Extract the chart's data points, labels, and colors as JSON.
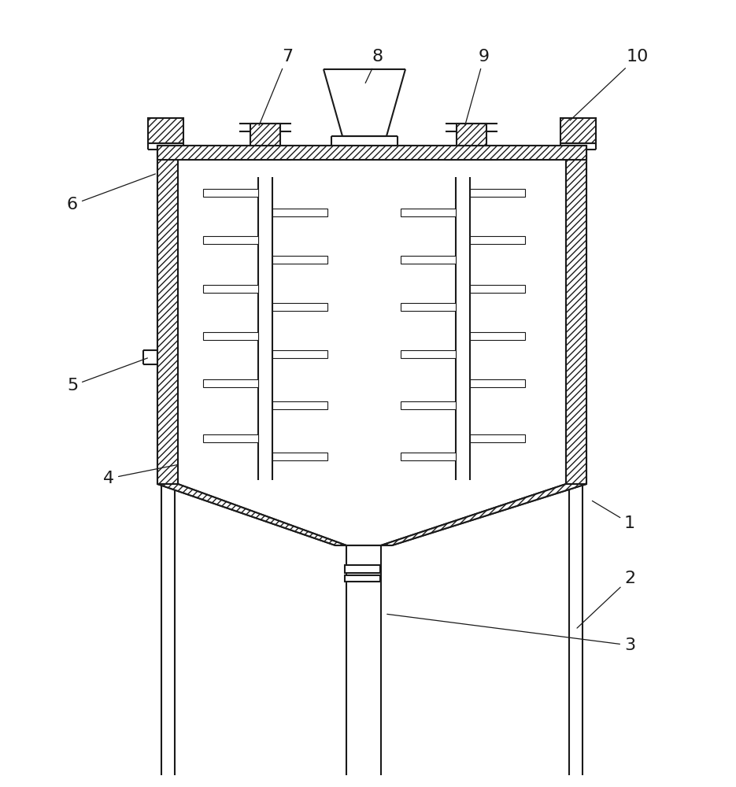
{
  "bg_color": "#ffffff",
  "line_color": "#1a1a1a",
  "lw": 1.5,
  "tlw": 0.8
}
